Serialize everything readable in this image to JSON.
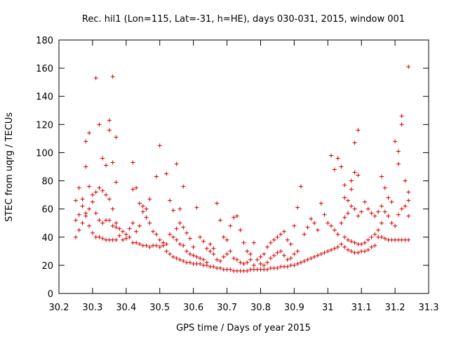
{
  "chart_data": {
    "type": "scatter",
    "title": "Rec. hil1 (Lon=115, Lat=-31, h=HE), days 030-031, 2015, window 001",
    "xlabel": "GPS time / Days of year 2015",
    "ylabel": "STEC from uqrg / TECUs",
    "xlim": [
      30.2,
      31.3
    ],
    "ylim": [
      0,
      180
    ],
    "xticks": [
      "30.2",
      "30.3",
      "30.4",
      "30.5",
      "30.6",
      "30.7",
      "30.8",
      "30.9",
      "31",
      "31.1",
      "31.2",
      "31.3"
    ],
    "yticks": [
      "0",
      "20",
      "40",
      "60",
      "80",
      "100",
      "120",
      "140",
      "160",
      "180"
    ],
    "grid": false,
    "marker": "+",
    "color": "#d00000",
    "series": [
      {
        "name": "STEC",
        "points": [
          [
            30.25,
            40
          ],
          [
            30.25,
            52
          ],
          [
            30.26,
            56
          ],
          [
            30.27,
            62
          ],
          [
            30.28,
            57
          ],
          [
            30.29,
            48
          ],
          [
            30.3,
            43
          ],
          [
            30.31,
            40
          ],
          [
            30.32,
            40
          ],
          [
            30.33,
            39
          ],
          [
            30.34,
            38
          ],
          [
            30.35,
            38
          ],
          [
            30.36,
            38
          ],
          [
            30.37,
            38
          ],
          [
            30.25,
            66
          ],
          [
            30.26,
            75
          ],
          [
            30.27,
            67
          ],
          [
            30.28,
            90
          ],
          [
            30.29,
            76
          ],
          [
            30.3,
            70
          ],
          [
            30.31,
            72
          ],
          [
            30.32,
            75
          ],
          [
            30.33,
            73
          ],
          [
            30.34,
            70
          ],
          [
            30.35,
            67
          ],
          [
            30.36,
            60
          ],
          [
            30.37,
            50
          ],
          [
            30.28,
            108
          ],
          [
            30.29,
            114
          ],
          [
            30.31,
            153
          ],
          [
            30.32,
            120
          ],
          [
            30.33,
            96
          ],
          [
            30.34,
            91
          ],
          [
            30.35,
            123
          ],
          [
            30.35,
            116
          ],
          [
            30.36,
            154
          ],
          [
            30.36,
            93
          ],
          [
            30.37,
            111
          ],
          [
            30.37,
            79
          ],
          [
            30.26,
            45
          ],
          [
            30.27,
            50
          ],
          [
            30.28,
            55
          ],
          [
            30.29,
            60
          ],
          [
            30.3,
            65
          ],
          [
            30.31,
            57
          ],
          [
            30.32,
            52
          ],
          [
            30.33,
            50
          ],
          [
            30.34,
            52
          ],
          [
            30.35,
            52
          ],
          [
            30.36,
            48
          ],
          [
            30.37,
            47
          ],
          [
            30.38,
            46
          ],
          [
            30.39,
            44
          ],
          [
            30.4,
            42
          ],
          [
            30.41,
            40
          ],
          [
            30.42,
            36
          ],
          [
            30.43,
            36
          ],
          [
            30.44,
            35
          ],
          [
            30.45,
            34
          ],
          [
            30.46,
            34
          ],
          [
            30.47,
            33
          ],
          [
            30.48,
            34
          ],
          [
            30.49,
            34
          ],
          [
            30.5,
            33
          ],
          [
            30.51,
            34
          ],
          [
            30.52,
            35
          ],
          [
            30.38,
            41
          ],
          [
            30.39,
            38
          ],
          [
            30.4,
            39
          ],
          [
            30.41,
            46
          ],
          [
            30.42,
            50
          ],
          [
            30.43,
            44
          ],
          [
            30.44,
            48
          ],
          [
            30.45,
            58
          ],
          [
            30.46,
            54
          ],
          [
            30.47,
            50
          ],
          [
            30.48,
            44
          ],
          [
            30.49,
            42
          ],
          [
            30.5,
            38
          ],
          [
            30.51,
            36
          ],
          [
            30.42,
            93
          ],
          [
            30.42,
            74
          ],
          [
            30.43,
            75
          ],
          [
            30.44,
            64
          ],
          [
            30.45,
            62
          ],
          [
            30.46,
            60
          ],
          [
            30.47,
            67
          ],
          [
            30.49,
            83
          ],
          [
            30.5,
            105
          ],
          [
            30.52,
            85
          ],
          [
            30.53,
            66
          ],
          [
            30.54,
            59
          ],
          [
            30.55,
            92
          ],
          [
            30.56,
            60
          ],
          [
            30.57,
            76
          ],
          [
            30.52,
            30
          ],
          [
            30.53,
            28
          ],
          [
            30.54,
            26
          ],
          [
            30.55,
            25
          ],
          [
            30.56,
            24
          ],
          [
            30.57,
            23
          ],
          [
            30.58,
            22
          ],
          [
            30.59,
            22
          ],
          [
            30.6,
            21
          ],
          [
            30.61,
            21
          ],
          [
            30.62,
            21
          ],
          [
            30.63,
            20
          ],
          [
            30.64,
            20
          ],
          [
            30.53,
            42
          ],
          [
            30.54,
            40
          ],
          [
            30.55,
            38
          ],
          [
            30.56,
            35
          ],
          [
            30.57,
            34
          ],
          [
            30.58,
            30
          ],
          [
            30.59,
            28
          ],
          [
            30.6,
            27
          ],
          [
            30.61,
            26
          ],
          [
            30.62,
            25
          ],
          [
            30.63,
            24
          ],
          [
            30.64,
            22
          ],
          [
            30.55,
            46
          ],
          [
            30.56,
            50
          ],
          [
            30.57,
            47
          ],
          [
            30.58,
            43
          ],
          [
            30.59,
            39
          ],
          [
            30.6,
            33
          ],
          [
            30.61,
            61
          ],
          [
            30.62,
            40
          ],
          [
            30.63,
            37
          ],
          [
            30.64,
            32
          ],
          [
            30.65,
            30
          ],
          [
            30.66,
            28
          ],
          [
            30.65,
            19
          ],
          [
            30.66,
            19
          ],
          [
            30.67,
            18
          ],
          [
            30.68,
            18
          ],
          [
            30.69,
            17
          ],
          [
            30.7,
            17
          ],
          [
            30.71,
            17
          ],
          [
            30.72,
            16
          ],
          [
            30.73,
            16
          ],
          [
            30.74,
            16
          ],
          [
            30.75,
            16
          ],
          [
            30.76,
            16
          ],
          [
            30.77,
            17
          ],
          [
            30.78,
            17
          ],
          [
            30.65,
            35
          ],
          [
            30.66,
            32
          ],
          [
            30.67,
            64
          ],
          [
            30.68,
            52
          ],
          [
            30.69,
            40
          ],
          [
            30.7,
            38
          ],
          [
            30.71,
            48
          ],
          [
            30.72,
            54
          ],
          [
            30.73,
            55
          ],
          [
            30.74,
            45
          ],
          [
            30.75,
            36
          ],
          [
            30.76,
            30
          ],
          [
            30.77,
            28
          ],
          [
            30.78,
            36
          ],
          [
            30.67,
            24
          ],
          [
            30.68,
            23
          ],
          [
            30.69,
            26
          ],
          [
            30.7,
            28
          ],
          [
            30.71,
            30
          ],
          [
            30.72,
            25
          ],
          [
            30.73,
            24
          ],
          [
            30.74,
            22
          ],
          [
            30.75,
            21
          ],
          [
            30.76,
            22
          ],
          [
            30.77,
            24
          ],
          [
            30.78,
            20
          ],
          [
            30.79,
            17
          ],
          [
            30.8,
            17
          ],
          [
            30.81,
            17
          ],
          [
            30.82,
            17
          ],
          [
            30.83,
            18
          ],
          [
            30.84,
            18
          ],
          [
            30.85,
            18
          ],
          [
            30.86,
            19
          ],
          [
            30.87,
            19
          ],
          [
            30.88,
            19
          ],
          [
            30.89,
            20
          ],
          [
            30.9,
            20
          ],
          [
            30.91,
            21
          ],
          [
            30.92,
            22
          ],
          [
            30.79,
            24
          ],
          [
            30.8,
            26
          ],
          [
            30.81,
            28
          ],
          [
            30.82,
            33
          ],
          [
            30.83,
            36
          ],
          [
            30.84,
            38
          ],
          [
            30.85,
            40
          ],
          [
            30.86,
            42
          ],
          [
            30.87,
            44
          ],
          [
            30.88,
            38
          ],
          [
            30.89,
            35
          ],
          [
            30.9,
            48
          ],
          [
            30.91,
            61
          ],
          [
            30.92,
            76
          ],
          [
            30.8,
            21
          ],
          [
            30.81,
            20
          ],
          [
            30.82,
            22
          ],
          [
            30.83,
            25
          ],
          [
            30.84,
            27
          ],
          [
            30.85,
            29
          ],
          [
            30.86,
            30
          ],
          [
            30.87,
            27
          ],
          [
            30.88,
            24
          ],
          [
            30.89,
            25
          ],
          [
            30.9,
            28
          ],
          [
            30.91,
            30
          ],
          [
            30.93,
            23
          ],
          [
            30.94,
            24
          ],
          [
            30.95,
            25
          ],
          [
            30.96,
            26
          ],
          [
            30.97,
            27
          ],
          [
            30.98,
            28
          ],
          [
            30.99,
            29
          ],
          [
            31.0,
            30
          ],
          [
            31.01,
            31
          ],
          [
            31.02,
            32
          ],
          [
            31.03,
            33
          ],
          [
            30.93,
            42
          ],
          [
            30.94,
            47
          ],
          [
            30.95,
            53
          ],
          [
            30.96,
            50
          ],
          [
            30.97,
            45
          ],
          [
            30.98,
            64
          ],
          [
            30.99,
            56
          ],
          [
            31.0,
            50
          ],
          [
            31.01,
            48
          ],
          [
            31.02,
            45
          ],
          [
            31.03,
            42
          ],
          [
            31.01,
            98
          ],
          [
            31.02,
            88
          ],
          [
            31.03,
            96
          ],
          [
            31.04,
            90
          ],
          [
            31.05,
            77
          ],
          [
            31.05,
            68
          ],
          [
            31.06,
            66
          ],
          [
            31.07,
            80
          ],
          [
            31.07,
            74
          ],
          [
            31.08,
            107
          ],
          [
            31.08,
            86
          ],
          [
            31.09,
            116
          ],
          [
            31.09,
            84
          ],
          [
            31.04,
            35
          ],
          [
            31.05,
            33
          ],
          [
            31.06,
            31
          ],
          [
            31.07,
            30
          ],
          [
            31.08,
            29
          ],
          [
            31.09,
            29
          ],
          [
            31.1,
            30
          ],
          [
            31.11,
            30
          ],
          [
            31.12,
            31
          ],
          [
            31.13,
            33
          ],
          [
            31.14,
            34
          ],
          [
            31.04,
            50
          ],
          [
            31.05,
            54
          ],
          [
            31.06,
            57
          ],
          [
            31.07,
            62
          ],
          [
            31.08,
            60
          ],
          [
            31.09,
            55
          ],
          [
            31.1,
            58
          ],
          [
            31.11,
            65
          ],
          [
            31.12,
            60
          ],
          [
            31.13,
            57
          ],
          [
            31.14,
            55
          ],
          [
            31.05,
            40
          ],
          [
            31.06,
            38
          ],
          [
            31.07,
            37
          ],
          [
            31.08,
            36
          ],
          [
            31.09,
            35
          ],
          [
            31.1,
            35
          ],
          [
            31.11,
            36
          ],
          [
            31.12,
            38
          ],
          [
            31.13,
            40
          ],
          [
            31.14,
            42
          ],
          [
            31.15,
            45
          ],
          [
            31.16,
            50
          ],
          [
            31.16,
            83
          ],
          [
            31.17,
            75
          ],
          [
            31.18,
            68
          ],
          [
            31.19,
            65
          ],
          [
            31.2,
            108
          ],
          [
            31.21,
            101
          ],
          [
            31.21,
            92
          ],
          [
            31.22,
            126
          ],
          [
            31.22,
            120
          ],
          [
            31.23,
            80
          ],
          [
            31.24,
            161
          ],
          [
            31.24,
            72
          ],
          [
            31.15,
            40
          ],
          [
            31.16,
            40
          ],
          [
            31.17,
            39
          ],
          [
            31.18,
            38
          ],
          [
            31.19,
            38
          ],
          [
            31.2,
            38
          ],
          [
            31.21,
            38
          ],
          [
            31.22,
            38
          ],
          [
            31.23,
            38
          ],
          [
            31.24,
            38
          ],
          [
            31.15,
            58
          ],
          [
            31.16,
            62
          ],
          [
            31.17,
            58
          ],
          [
            31.18,
            55
          ],
          [
            31.19,
            50
          ],
          [
            31.2,
            48
          ],
          [
            31.21,
            56
          ],
          [
            31.22,
            60
          ],
          [
            31.23,
            62
          ],
          [
            31.24,
            66
          ],
          [
            31.24,
            55
          ]
        ]
      }
    ]
  }
}
